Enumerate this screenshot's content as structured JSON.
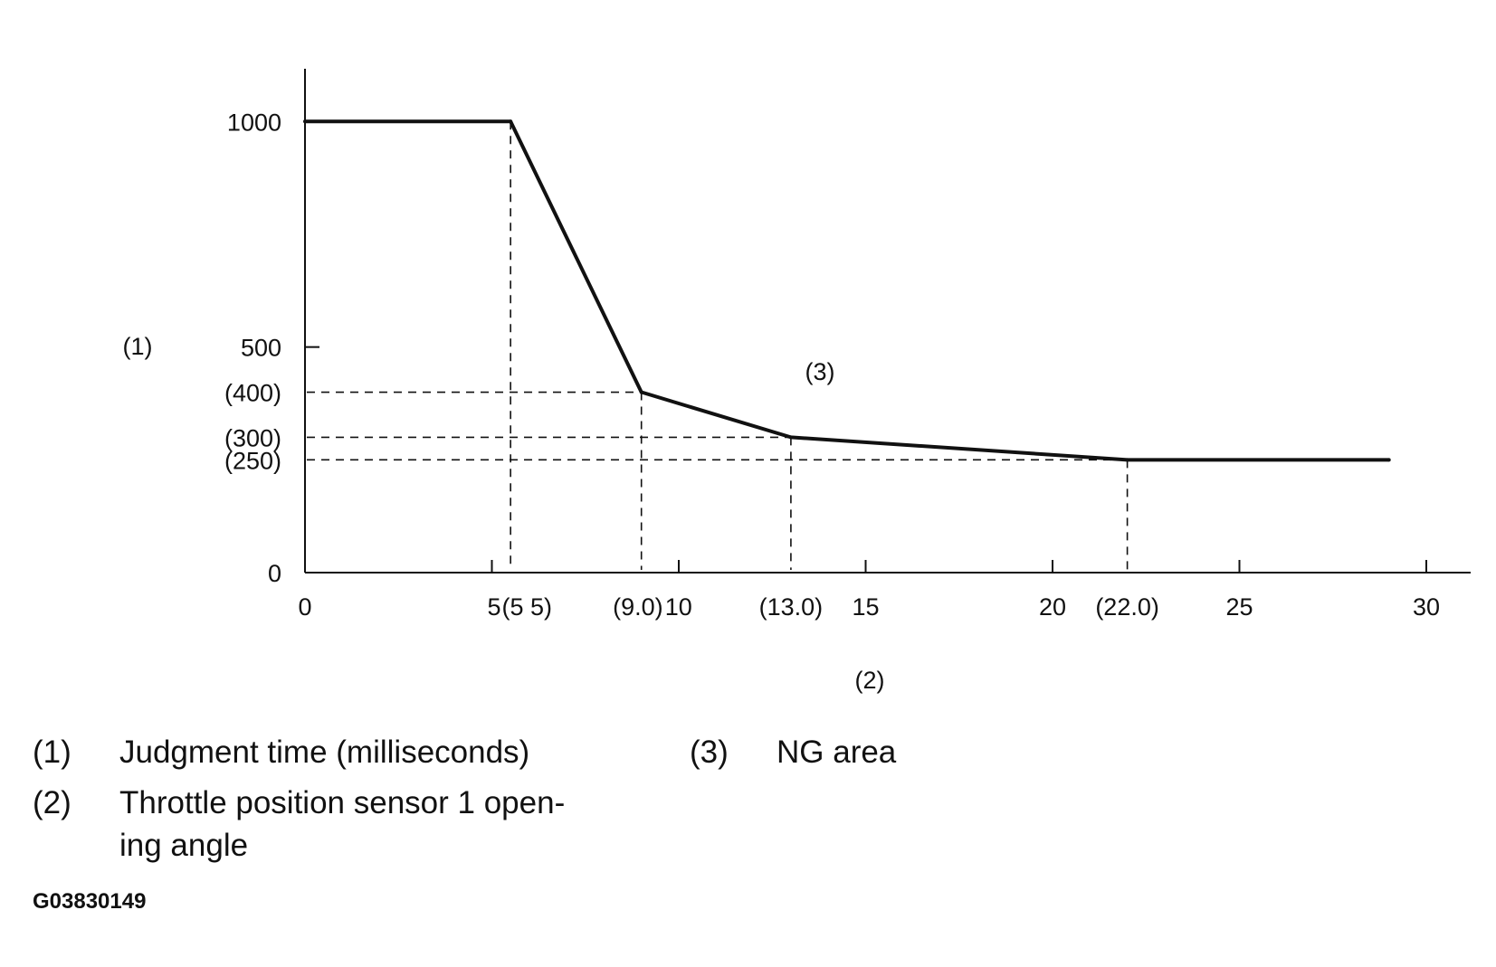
{
  "chart_data": {
    "type": "line",
    "x": [
      0,
      5.5,
      9.0,
      13.0,
      22.0,
      29.0
    ],
    "y": [
      1000,
      1000,
      400,
      300,
      250,
      250
    ],
    "xlim": [
      0,
      30
    ],
    "ylim": [
      0,
      1000
    ],
    "x_ticks": [
      {
        "value": 0,
        "label": "0"
      },
      {
        "value": 5,
        "label": "5"
      },
      {
        "value": 5.5,
        "label": "(5 5)"
      },
      {
        "value": 9.0,
        "label": "(9.0)"
      },
      {
        "value": 10,
        "label": "10"
      },
      {
        "value": 13.0,
        "label": "(13.0)"
      },
      {
        "value": 15,
        "label": "15"
      },
      {
        "value": 20,
        "label": "20"
      },
      {
        "value": 22.0,
        "label": "(22.0)"
      },
      {
        "value": 25,
        "label": "25"
      },
      {
        "value": 30,
        "label": "30"
      }
    ],
    "y_ticks": [
      {
        "value": 0,
        "label": "0"
      },
      {
        "value": 250,
        "label": "(250)"
      },
      {
        "value": 300,
        "label": "(300)"
      },
      {
        "value": 400,
        "label": "(400)"
      },
      {
        "value": 500,
        "label": "500"
      },
      {
        "value": 1000,
        "label": "1000"
      }
    ],
    "reference_lines": {
      "vertical": [
        5.5,
        9.0,
        13.0,
        22.0
      ],
      "horizontal": [
        400,
        300,
        250
      ]
    },
    "xlabel": "(2)",
    "ylabel": "(1)",
    "area_label": "(3)",
    "grid": false
  },
  "legend": [
    {
      "num": "(1)",
      "text": "Judgment time (milliseconds)"
    },
    {
      "num": "(2)",
      "text": "Throttle position sensor 1 open-"
    },
    {
      "num": "",
      "text": "ing angle"
    },
    {
      "num": "(3)",
      "text": "NG area"
    }
  ],
  "figure_id": "G03830149"
}
